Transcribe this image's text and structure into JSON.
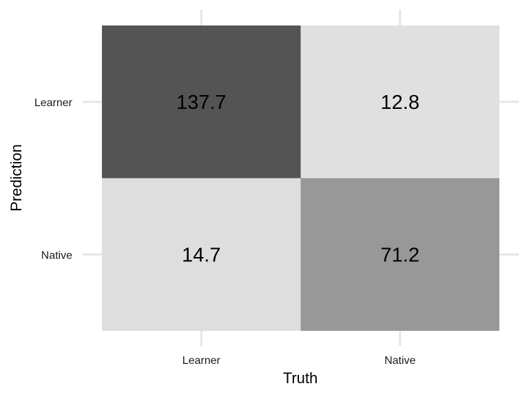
{
  "chart_data": {
    "type": "heatmap",
    "title": "",
    "xlabel": "Truth",
    "ylabel": "Prediction",
    "x_categories": [
      "Learner",
      "Native"
    ],
    "y_categories": [
      "Learner",
      "Native"
    ],
    "cells": [
      {
        "truth": "Learner",
        "prediction": "Learner",
        "value": 137.7,
        "label": "137.7",
        "fill": "#545454"
      },
      {
        "truth": "Native",
        "prediction": "Learner",
        "value": 12.8,
        "label": "12.8",
        "fill": "#e0e0e0"
      },
      {
        "truth": "Learner",
        "prediction": "Native",
        "value": 14.7,
        "label": "14.7",
        "fill": "#dedede"
      },
      {
        "truth": "Native",
        "prediction": "Native",
        "value": 71.2,
        "label": "71.2",
        "fill": "#989898"
      }
    ],
    "grid": true,
    "legend": "none"
  }
}
